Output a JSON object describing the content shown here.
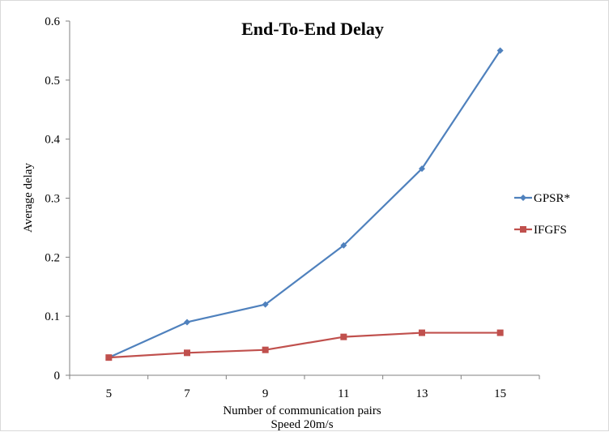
{
  "chart_data": {
    "type": "line",
    "title": "End-To-End Delay",
    "xlabel": "Number of communication pairs",
    "xlabel2": "Speed 20m/s",
    "ylabel": "Average delay",
    "categories": [
      "5",
      "7",
      "9",
      "11",
      "13",
      "15"
    ],
    "x": [
      5,
      7,
      9,
      11,
      13,
      15
    ],
    "ylim": [
      0,
      0.6
    ],
    "yticks": [
      "0",
      "0.1",
      "0.2",
      "0.3",
      "0.4",
      "0.5",
      "0.6"
    ],
    "ytick_values": [
      0,
      0.1,
      0.2,
      0.3,
      0.4,
      0.5,
      0.6
    ],
    "grid": false,
    "legend_position": "right",
    "series": [
      {
        "name": "GPSR*",
        "color": "#4F81BD",
        "marker": "diamond",
        "values": [
          0.03,
          0.09,
          0.12,
          0.22,
          0.35,
          0.55
        ]
      },
      {
        "name": "IFGFS",
        "color": "#C0504D",
        "marker": "square",
        "values": [
          0.03,
          0.038,
          0.043,
          0.065,
          0.072,
          0.072
        ]
      }
    ]
  }
}
